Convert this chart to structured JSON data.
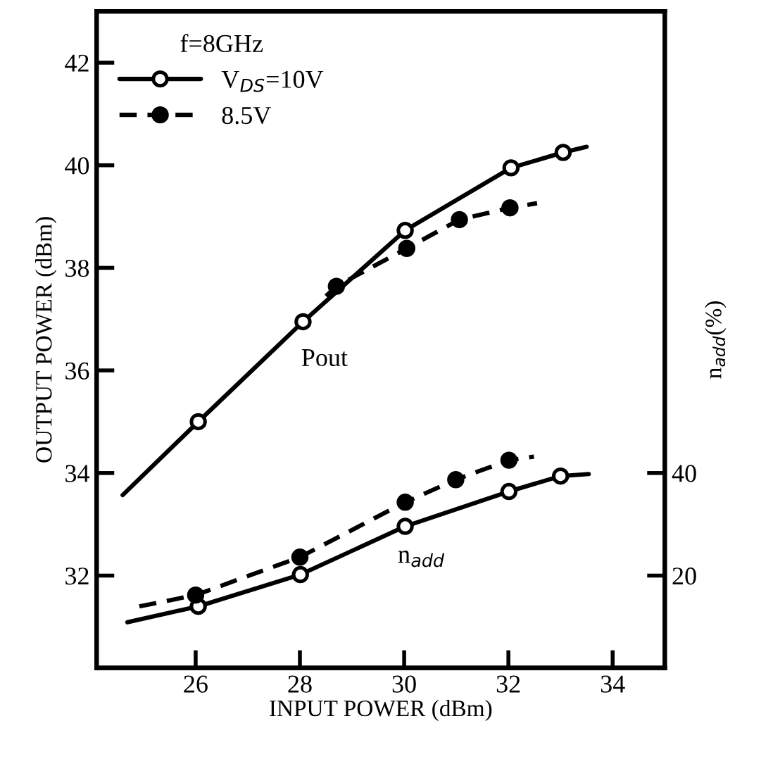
{
  "chart_data": {
    "type": "line",
    "xlabel": "INPUT POWER (dBm)",
    "ylabel": "OUTPUT POWER (dBm)",
    "y2label": "n$_{add}$(%)",
    "legend_title": "f=8GHz",
    "legend": "top left",
    "grid": false,
    "xlim": [
      24.1,
      35
    ],
    "xticks": [
      26,
      28,
      30,
      32,
      34
    ],
    "ylim": [
      30.2,
      43
    ],
    "yticks": [
      32,
      34,
      36,
      38,
      40,
      42
    ],
    "y2lim": [
      2,
      130
    ],
    "y2ticks": [
      20,
      40
    ],
    "series": [
      {
        "name": "V$_{DS}$=10V",
        "line_style": "solid",
        "marker": "circle",
        "color": "#000000",
        "x": [
          24.6,
          26.05,
          28.06,
          30.02,
          32.05,
          33.05,
          33.5
        ],
        "values": [
          33.57,
          35.0,
          36.95,
          38.73,
          39.95,
          40.25,
          40.36
        ]
      },
      {
        "name": "8.5V",
        "line_style": "dashed",
        "marker": "circle",
        "color": "#000000",
        "x": [
          28.5,
          28.7,
          30.05,
          31.06,
          32.03,
          32.55
        ],
        "values": [
          37.45,
          37.64,
          38.38,
          38.94,
          39.17,
          39.26
        ]
      },
      {
        "axis": "y2",
        "line_style": "solid",
        "marker": "circle",
        "color": "#000000",
        "x": [
          24.69,
          26.05,
          28.01,
          30.02,
          32.01,
          33.0,
          33.54
        ],
        "values": [
          10.9,
          14.0,
          20.2,
          29.6,
          36.4,
          39.4,
          39.8
        ]
      },
      {
        "axis": "y2",
        "line_style": "dashed",
        "marker": "circle",
        "color": "#000000",
        "x": [
          24.92,
          26.0,
          28.0,
          30.02,
          30.99,
          32.01,
          32.49
        ],
        "values": [
          14.0,
          16.2,
          23.6,
          34.3,
          38.7,
          42.5,
          43.2
        ]
      }
    ],
    "annotations": [
      "Pout",
      "n$_{add}$"
    ]
  }
}
